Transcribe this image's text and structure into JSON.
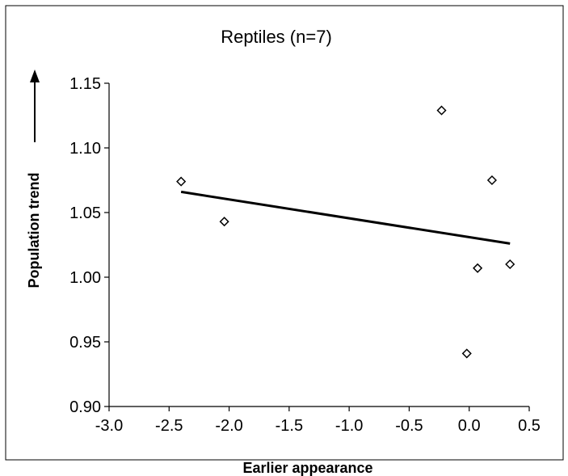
{
  "chart_data": {
    "type": "scatter",
    "title": "Reptiles (n=7)",
    "xlabel": "Earlier appearance",
    "ylabel": "Population trend",
    "xlim": [
      -3.0,
      0.5
    ],
    "ylim": [
      0.9,
      1.15
    ],
    "x_ticks": [
      "-3.0",
      "-2.5",
      "-2.0",
      "-1.5",
      "-1.0",
      "-0.5",
      "0.0",
      "0.5"
    ],
    "y_ticks": [
      "0.90",
      "0.95",
      "1.00",
      "1.05",
      "1.10",
      "1.15"
    ],
    "grid": false,
    "marker": "open-diamond",
    "series": [
      {
        "points": [
          {
            "x": -2.4,
            "y": 1.074
          },
          {
            "x": -2.04,
            "y": 1.043
          },
          {
            "x": -0.23,
            "y": 1.129
          },
          {
            "x": 0.19,
            "y": 1.075
          },
          {
            "x": 0.07,
            "y": 1.007
          },
          {
            "x": 0.34,
            "y": 1.01
          },
          {
            "x": -0.02,
            "y": 0.941
          }
        ]
      }
    ],
    "trendline": {
      "x": [
        -2.4,
        0.34
      ],
      "y": [
        1.066,
        1.026
      ]
    },
    "colors": {
      "marker": "#000000",
      "trendline": "#000000",
      "axes": "#000000"
    }
  }
}
